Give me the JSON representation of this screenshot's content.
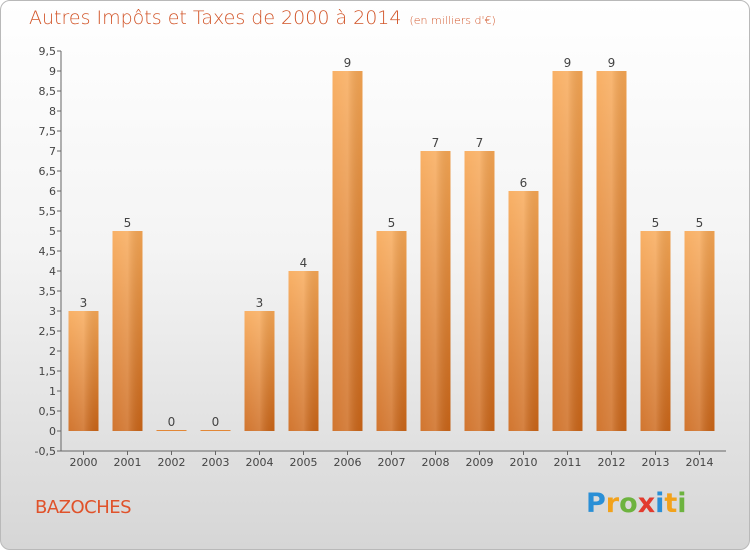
{
  "title": "Autres Impôts et Taxes de 2000 à 2014",
  "unit": "(en milliers d'€)",
  "commune": "BAZOCHES",
  "brand": {
    "name": "Proxiti",
    "letters": [
      {
        "ch": "P",
        "color": "#2a8fd6"
      },
      {
        "ch": "r",
        "color": "#f2a21b"
      },
      {
        "ch": "o",
        "color": "#6db33f"
      },
      {
        "ch": "x",
        "color": "#e23b2e"
      },
      {
        "ch": "i",
        "color": "#2a8fd6"
      },
      {
        "ch": "t",
        "color": "#f2a21b"
      },
      {
        "ch": "i",
        "color": "#6db33f"
      }
    ]
  },
  "colors": {
    "title": "#d2562a",
    "bar_light": "#f7a553",
    "bar_dark": "#cf6a1c",
    "axis": "#555555"
  },
  "chart_data": {
    "type": "bar",
    "categories": [
      "2000",
      "2001",
      "2002",
      "2003",
      "2004",
      "2005",
      "2006",
      "2007",
      "2008",
      "2009",
      "2010",
      "2011",
      "2012",
      "2013",
      "2014"
    ],
    "values": [
      3,
      5,
      0,
      0,
      3,
      4,
      9,
      5,
      7,
      7,
      6,
      9,
      9,
      5,
      5
    ],
    "ylim": [
      -0.5,
      9.5
    ],
    "yticks": [
      "-0,5",
      "0",
      "0,5",
      "1",
      "1,5",
      "2",
      "2,5",
      "3",
      "3,5",
      "4",
      "4,5",
      "5",
      "5,5",
      "6",
      "6,5",
      "7",
      "7,5",
      "8",
      "8,5",
      "9",
      "9,5"
    ],
    "ytick_values": [
      -0.5,
      0,
      0.5,
      1,
      1.5,
      2,
      2.5,
      3,
      3.5,
      4,
      4.5,
      5,
      5.5,
      6,
      6.5,
      7,
      7.5,
      8,
      8.5,
      9,
      9.5
    ],
    "grid": false,
    "legend": "none"
  }
}
